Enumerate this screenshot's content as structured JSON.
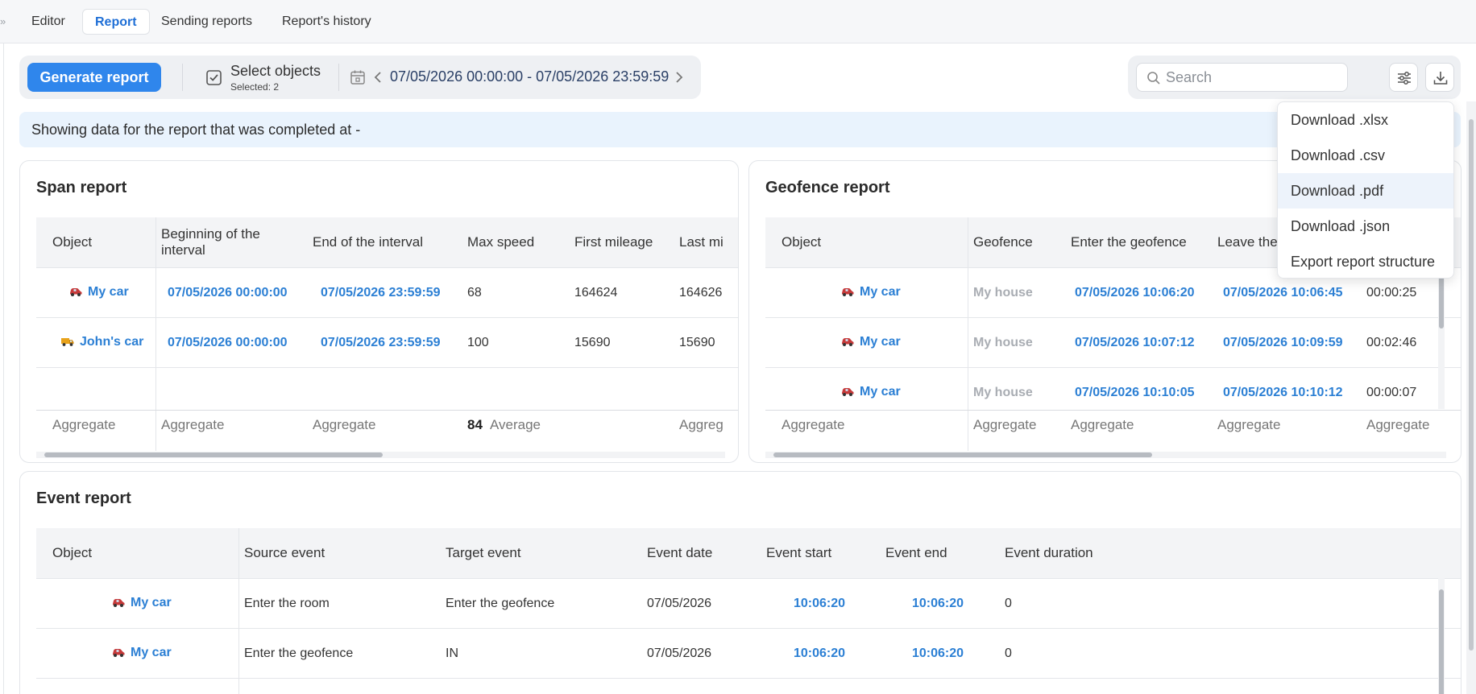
{
  "tabs": [
    {
      "label": "Editor",
      "active": false
    },
    {
      "label": "Report",
      "active": true
    },
    {
      "label": "Sending reports",
      "active": false
    },
    {
      "label": "Report's history",
      "active": false
    }
  ],
  "toolbar": {
    "generate_label": "Generate report",
    "select_objects_label": "Select objects",
    "selected_text": "Selected: 2",
    "date_range": "07/05/2026 00:00:00 - 07/05/2026 23:59:59",
    "search_placeholder": "Search"
  },
  "banner": "Showing data for the report that was completed at -",
  "download_menu": {
    "items": [
      "Download .xlsx",
      "Download .csv",
      "Download .pdf",
      "Download .json",
      "Export report structure"
    ]
  },
  "span_report": {
    "title": "Span report",
    "columns": [
      "Object",
      "Beginning of the interval",
      "End of the interval",
      "Max speed",
      "First mileage",
      "Last mi"
    ],
    "rows": [
      {
        "object": "My car",
        "icon": "car-red-icon",
        "begin": "07/05/2026 00:00:00",
        "end": "07/05/2026 23:59:59",
        "max_speed": "68",
        "first_mileage": "164624",
        "last_mileage": "164626"
      },
      {
        "object": "John's car",
        "icon": "truck-orange-icon",
        "begin": "07/05/2026 00:00:00",
        "end": "07/05/2026 23:59:59",
        "max_speed": "100",
        "first_mileage": "15690",
        "last_mileage": "15690"
      }
    ],
    "footer": {
      "agg": "Aggregate",
      "avg_value": "84",
      "avg_label": "Average",
      "agg_cut": "Aggreg"
    }
  },
  "geofence_report": {
    "title": "Geofence report",
    "columns": [
      "Object",
      "Geofence",
      "Enter the geofence",
      "Leave the"
    ],
    "rows": [
      {
        "object": "My car",
        "geofence": "My house",
        "enter": "07/05/2026 10:06:20",
        "leave": "07/05/2026 10:06:45",
        "duration": "00:00:25"
      },
      {
        "object": "My car",
        "geofence": "My house",
        "enter": "07/05/2026 10:07:12",
        "leave": "07/05/2026 10:09:59",
        "duration": "00:02:46"
      },
      {
        "object": "My car",
        "geofence": "My house",
        "enter": "07/05/2026 10:10:05",
        "leave": "07/05/2026 10:10:12",
        "duration": "00:00:07"
      }
    ],
    "footer": {
      "agg": "Aggregate"
    }
  },
  "event_report": {
    "title": "Event report",
    "columns": [
      "Object",
      "Source event",
      "Target event",
      "Event date",
      "Event start",
      "Event end",
      "Event duration"
    ],
    "rows": [
      {
        "object": "My car",
        "source": "Enter the room",
        "target": "Enter the geofence",
        "date": "07/05/2026",
        "start": "10:06:20",
        "end": "10:06:20",
        "duration": "0"
      },
      {
        "object": "My car",
        "source": "Enter the geofence",
        "target": "IN",
        "date": "07/05/2026",
        "start": "10:06:20",
        "end": "10:06:20",
        "duration": "0"
      }
    ]
  },
  "colors": {
    "accent": "#2f86ec",
    "link": "#2b7fd4",
    "banner": "#e9f3fd"
  }
}
